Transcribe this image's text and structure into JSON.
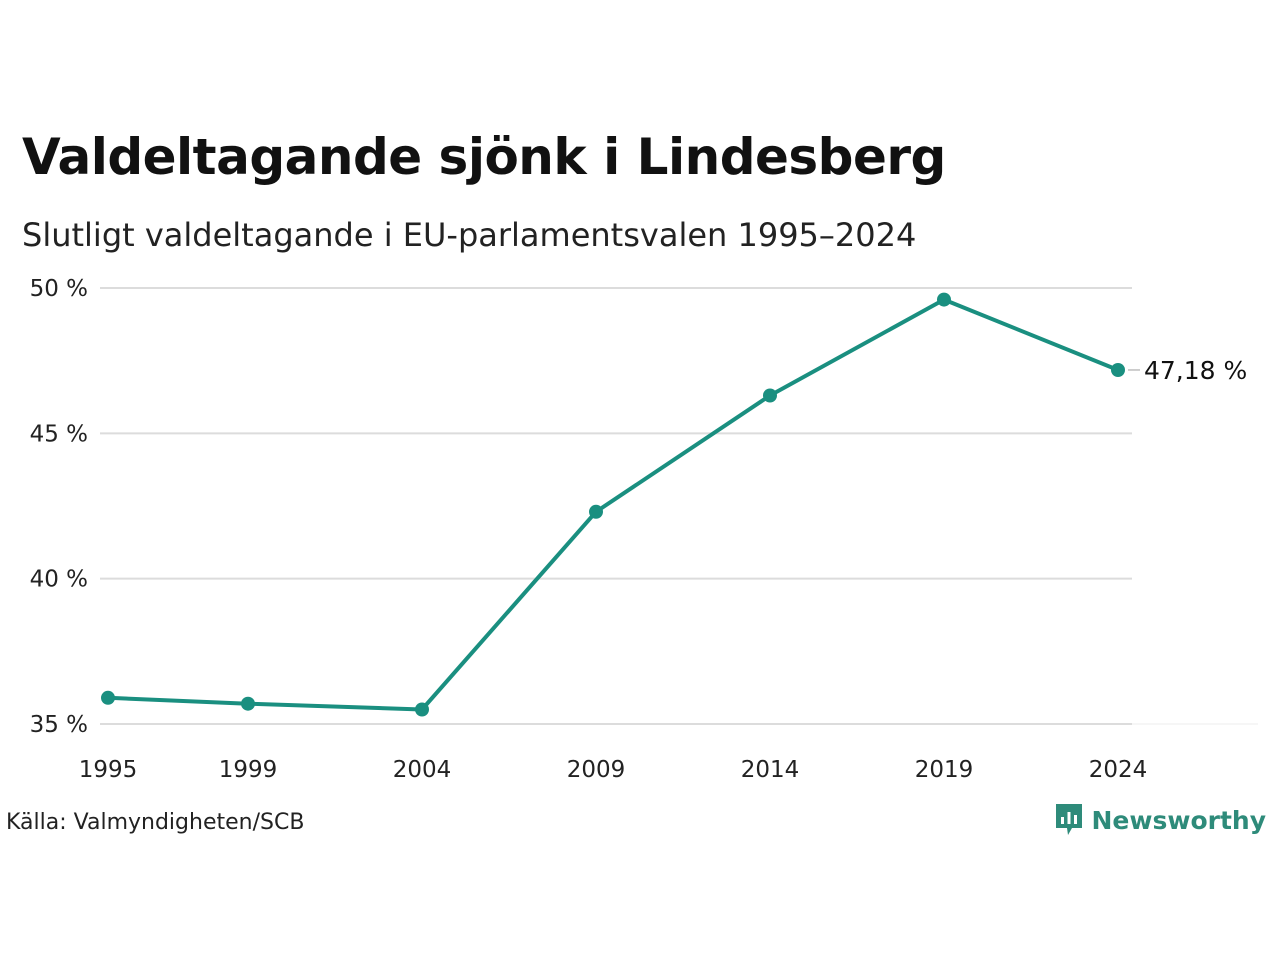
{
  "title": "Valdeltagande sjönk i Lindesberg",
  "subtitle": "Slutligt valdeltagande i EU-parlamentsvalen 1995–2024",
  "source": "Källa: Valmyndigheten/SCB",
  "brand": "Newsworthy",
  "colors": {
    "line": "#1a8f80",
    "grid": "#dcdcdc",
    "brand": "#2e8b7a"
  },
  "chart_data": {
    "type": "line",
    "title": "Valdeltagande sjönk i Lindesberg",
    "subtitle": "Slutligt valdeltagande i EU-parlamentsvalen 1995–2024",
    "x": [
      1995,
      1999,
      2004,
      2009,
      2014,
      2019,
      2024
    ],
    "x_tick_labels": [
      "1995",
      "1999",
      "2004",
      "2009",
      "2014",
      "2019",
      "2024"
    ],
    "series": [
      {
        "values": [
          35.9,
          35.7,
          35.5,
          42.3,
          46.3,
          49.6,
          47.18
        ]
      }
    ],
    "ylim": [
      35,
      50
    ],
    "y_ticks": [
      35,
      40,
      45,
      50
    ],
    "y_tick_labels": [
      "35 %",
      "40 %",
      "45 %",
      "50 %"
    ],
    "end_label": "47,18 %",
    "grid": true,
    "legend": "none"
  }
}
